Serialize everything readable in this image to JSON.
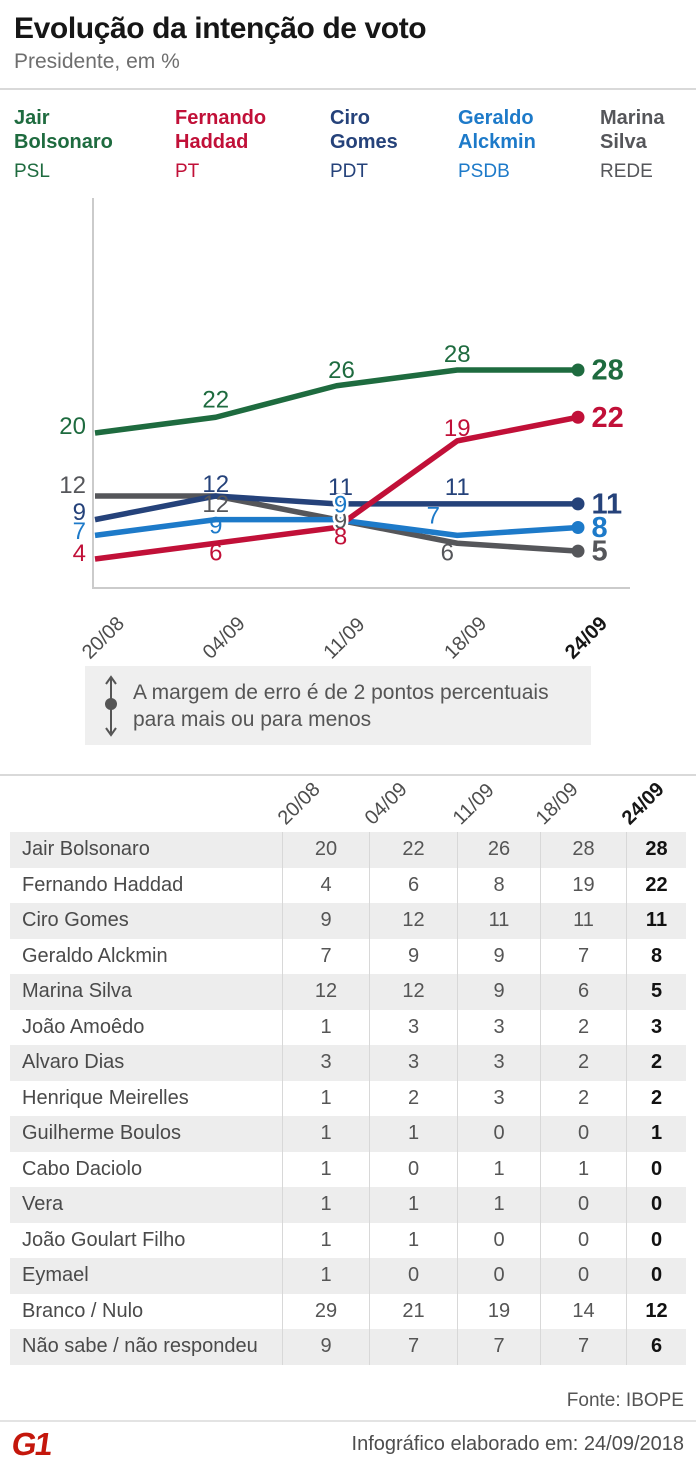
{
  "header": {
    "title": "Evolução da intenção de voto",
    "subtitle": "Presidente, em %"
  },
  "legend": [
    {
      "name_lines": [
        "Jair",
        "Bolsonaro"
      ],
      "party": "PSL",
      "color": "#1e6b3f"
    },
    {
      "name_lines": [
        "Fernando",
        "Haddad"
      ],
      "party": "PT",
      "color": "#c11038"
    },
    {
      "name_lines": [
        "Ciro",
        "Gomes"
      ],
      "party": "PDT",
      "color": "#25427a"
    },
    {
      "name_lines": [
        "Geraldo",
        "Alckmin"
      ],
      "party": "PSDB",
      "color": "#1d7ac9"
    },
    {
      "name_lines": [
        "Marina",
        "Silva"
      ],
      "party": "REDE",
      "color": "#55565a"
    }
  ],
  "chart_data": {
    "type": "line",
    "x": [
      "20/08",
      "04/09",
      "11/09",
      "18/09",
      "24/09"
    ],
    "series": [
      {
        "name": "Jair Bolsonaro",
        "color": "#1e6b3f",
        "values": [
          20,
          22,
          26,
          28,
          28
        ]
      },
      {
        "name": "Fernando Haddad",
        "color": "#c11038",
        "values": [
          4,
          6,
          8,
          19,
          22
        ]
      },
      {
        "name": "Ciro Gomes",
        "color": "#25427a",
        "values": [
          9,
          12,
          11,
          11,
          11
        ]
      },
      {
        "name": "Geraldo Alckmin",
        "color": "#1d7ac9",
        "values": [
          7,
          9,
          9,
          7,
          8
        ]
      },
      {
        "name": "Marina Silva",
        "color": "#55565a",
        "values": [
          12,
          12,
          9,
          6,
          5
        ]
      }
    ],
    "ylim": [
      0,
      50
    ],
    "grid": false,
    "legend_position": "top",
    "title": "Evolução da intenção de voto",
    "ylabel": "",
    "xlabel": ""
  },
  "note": {
    "lines": [
      "A margem de erro é de 2 pontos percentuais",
      "para mais ou para menos"
    ]
  },
  "table": {
    "col_headers": [
      "20/08",
      "04/09",
      "11/09",
      "18/09",
      "24/09"
    ],
    "rows": [
      {
        "label": "Jair Bolsonaro",
        "values": [
          20,
          22,
          26,
          28,
          28
        ]
      },
      {
        "label": "Fernando Haddad",
        "values": [
          4,
          6,
          8,
          19,
          22
        ]
      },
      {
        "label": "Ciro Gomes",
        "values": [
          9,
          12,
          11,
          11,
          11
        ]
      },
      {
        "label": "Geraldo Alckmin",
        "values": [
          7,
          9,
          9,
          7,
          8
        ]
      },
      {
        "label": "Marina Silva",
        "values": [
          12,
          12,
          9,
          6,
          5
        ]
      },
      {
        "label": "João Amoêdo",
        "values": [
          1,
          3,
          3,
          2,
          3
        ]
      },
      {
        "label": "Alvaro Dias",
        "values": [
          3,
          3,
          3,
          2,
          2
        ]
      },
      {
        "label": "Henrique Meirelles",
        "values": [
          1,
          2,
          3,
          2,
          2
        ]
      },
      {
        "label": "Guilherme Boulos",
        "values": [
          1,
          1,
          0,
          0,
          1
        ]
      },
      {
        "label": "Cabo Daciolo",
        "values": [
          1,
          0,
          1,
          1,
          0
        ]
      },
      {
        "label": "Vera",
        "values": [
          1,
          1,
          1,
          0,
          0
        ]
      },
      {
        "label": "João Goulart Filho",
        "values": [
          1,
          1,
          0,
          0,
          0
        ]
      },
      {
        "label": "Eymael",
        "values": [
          1,
          0,
          0,
          0,
          0
        ]
      },
      {
        "label": "Branco / Nulo",
        "values": [
          29,
          21,
          19,
          14,
          12
        ]
      },
      {
        "label": "Não sabe / não respondeu",
        "values": [
          9,
          7,
          7,
          7,
          6
        ]
      }
    ]
  },
  "source": "Fonte: IBOPE",
  "footer": {
    "logo": "G1",
    "logo_color": "#c4170c",
    "text": "Infográfico elaborado em: 24/09/2018"
  }
}
